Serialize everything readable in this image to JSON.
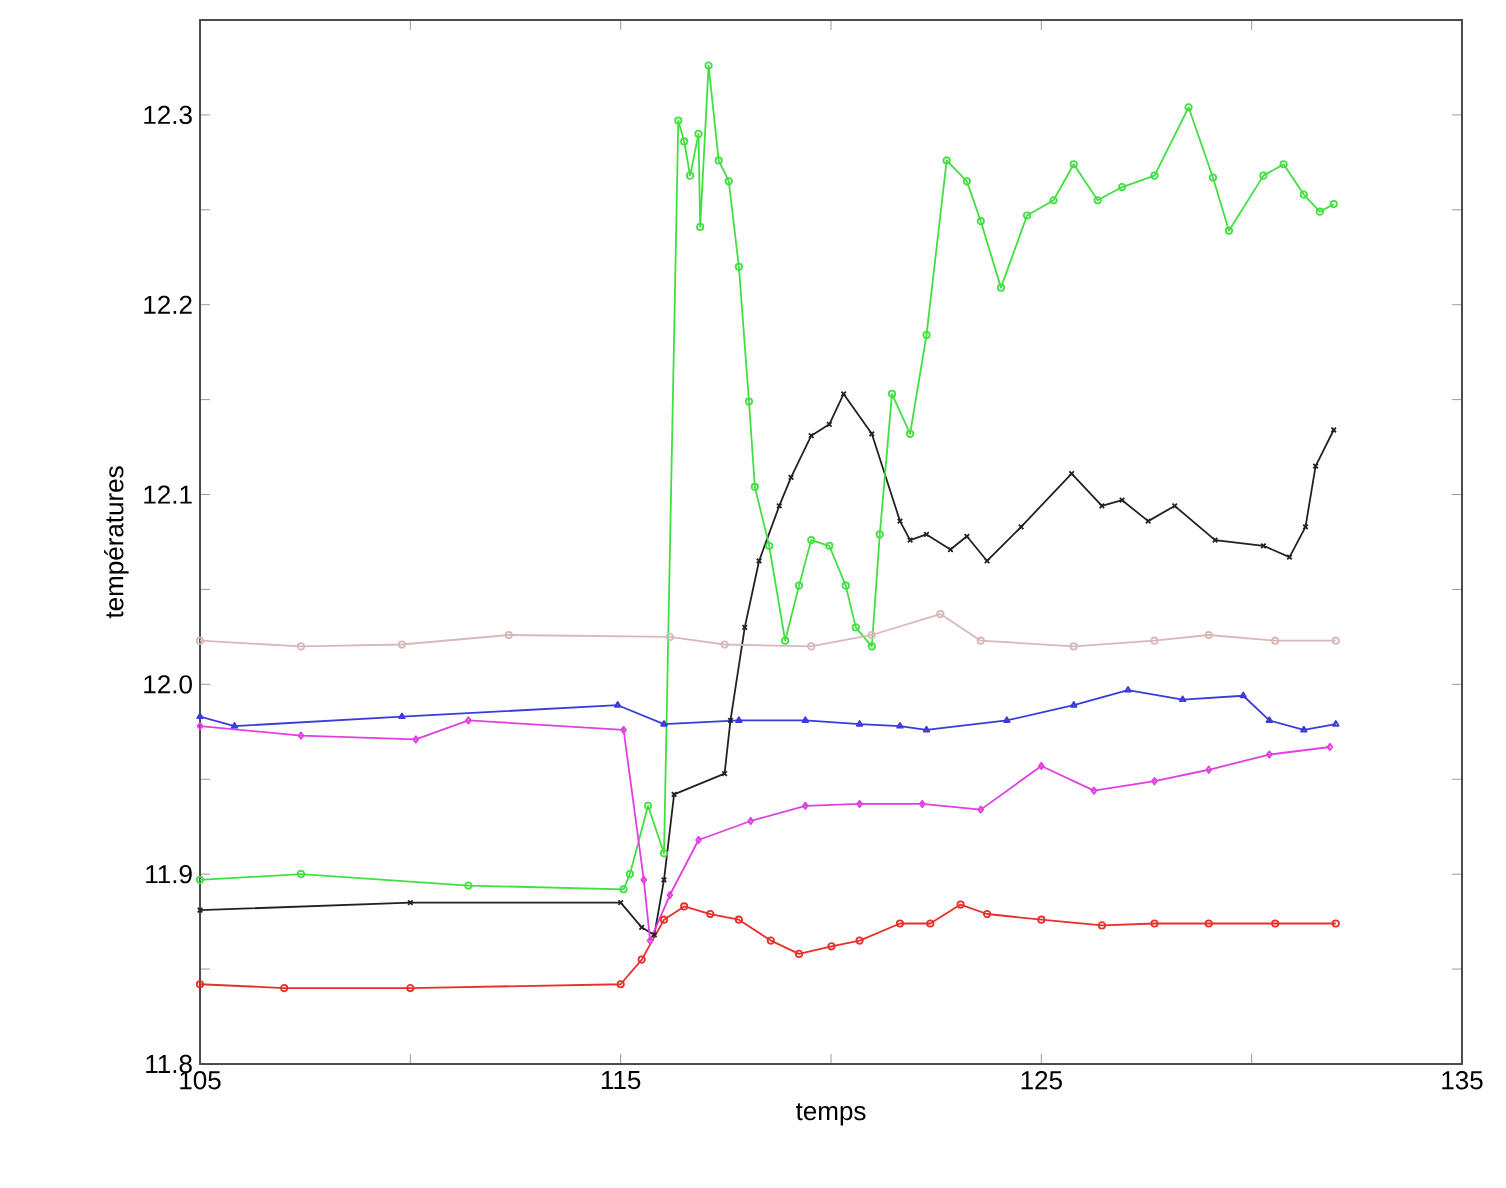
{
  "chart_data": {
    "type": "line",
    "xlabel": "temps",
    "ylabel": "températures",
    "xlim": [
      105,
      135
    ],
    "ylim": [
      11.8,
      12.35
    ],
    "xticks": [
      105,
      {
        "value": 110,
        "label": null
      },
      115,
      {
        "value": 120,
        "label": null
      },
      125,
      {
        "value": 130,
        "label": null
      },
      135
    ],
    "yticks": [
      11.8,
      {
        "value": 11.85,
        "label": null
      },
      11.9,
      {
        "value": 11.95,
        "label": null
      },
      {
        "value": 12.0,
        "label": "12.0"
      },
      {
        "value": 12.05,
        "label": null
      },
      12.1,
      {
        "value": 12.15,
        "label": null
      },
      12.2,
      {
        "value": 12.25,
        "label": null
      },
      12.3
    ],
    "line_style": "solid",
    "series": [
      {
        "color": "#222222",
        "marker": "cross",
        "x": [
          105,
          110,
          115,
          115.5,
          115.8,
          116.03,
          116.27,
          117.47,
          117.61,
          117.95,
          118.29,
          118.77,
          119.05,
          119.53,
          119.96,
          120.3,
          120.97,
          121.64,
          121.88,
          122.27,
          122.84,
          123.23,
          123.71,
          124.52,
          125.72,
          126.44,
          126.92,
          127.54,
          128.17,
          129.13,
          130.28,
          130.9,
          131.28,
          131.52,
          131.95
        ],
        "values": [
          11.881,
          11.885,
          11.885,
          11.872,
          11.868,
          11.897,
          11.942,
          11.953,
          11.981,
          12.03,
          12.065,
          12.094,
          12.109,
          12.131,
          12.137,
          12.153,
          12.132,
          12.086,
          12.076,
          12.079,
          12.071,
          12.078,
          12.065,
          12.083,
          12.111,
          12.094,
          12.097,
          12.086,
          12.094,
          12.076,
          12.073,
          12.067,
          12.083,
          12.115,
          12.134
        ]
      },
      {
        "color": "#e8302a",
        "marker": "circle",
        "x": [
          105,
          107,
          110,
          115,
          115.5,
          116.03,
          116.51,
          117.13,
          117.81,
          118.57,
          119.24,
          120.01,
          120.68,
          121.64,
          122.36,
          123.08,
          123.71,
          125.0,
          126.44,
          127.69,
          128.98,
          130.56,
          132.0
        ],
        "values": [
          11.842,
          11.84,
          11.84,
          11.842,
          11.855,
          11.876,
          11.883,
          11.879,
          11.876,
          11.865,
          11.858,
          11.862,
          11.865,
          11.874,
          11.874,
          11.884,
          11.879,
          11.876,
          11.873,
          11.874,
          11.874,
          11.874,
          11.874
        ]
      },
      {
        "color": "#40e040",
        "marker": "circle",
        "x": [
          105,
          107.4,
          111.38,
          115.07,
          115.22,
          115.65,
          116.03,
          116.37,
          116.51,
          116.65,
          116.85,
          116.89,
          117.09,
          117.33,
          117.57,
          117.81,
          118.05,
          118.19,
          118.53,
          118.91,
          119.24,
          119.53,
          119.96,
          120.35,
          120.59,
          120.97,
          121.16,
          121.45,
          121.88,
          122.27,
          122.75,
          123.23,
          123.56,
          124.04,
          124.66,
          125.29,
          125.77,
          126.34,
          126.92,
          127.69,
          128.5,
          129.08,
          129.46,
          130.28,
          130.76,
          131.24,
          131.62,
          131.95
        ],
        "values": [
          11.897,
          11.9,
          11.894,
          11.892,
          11.9,
          11.936,
          11.911,
          12.297,
          12.286,
          12.268,
          12.29,
          12.241,
          12.326,
          12.276,
          12.265,
          12.22,
          12.149,
          12.104,
          12.073,
          12.023,
          12.052,
          12.076,
          12.073,
          12.052,
          12.03,
          12.02,
          12.079,
          12.153,
          12.132,
          12.184,
          12.276,
          12.265,
          12.244,
          12.209,
          12.247,
          12.255,
          12.274,
          12.255,
          12.262,
          12.268,
          12.304,
          12.267,
          12.239,
          12.268,
          12.274,
          12.258,
          12.249,
          12.253
        ]
      },
      {
        "color": "#e040e0",
        "marker": "diamond",
        "x": [
          105,
          107.4,
          110.13,
          111.38,
          115.07,
          115.55,
          115.7,
          116.17,
          116.85,
          118.09,
          119.39,
          120.68,
          122.17,
          123.56,
          125.0,
          126.25,
          127.69,
          128.98,
          130.42,
          131.86
        ],
        "values": [
          11.978,
          11.973,
          11.971,
          11.981,
          11.976,
          11.897,
          11.865,
          11.889,
          11.918,
          11.928,
          11.936,
          11.937,
          11.937,
          11.934,
          11.957,
          11.944,
          11.949,
          11.955,
          11.963,
          11.967
        ]
      },
      {
        "color": "#3b3bdc",
        "marker": "triangle",
        "x": [
          105,
          105.82,
          109.8,
          114.93,
          116.03,
          117.81,
          119.39,
          120.68,
          121.64,
          122.27,
          124.18,
          125.77,
          127.06,
          128.36,
          129.8,
          130.42,
          131.24,
          132.0
        ],
        "values": [
          11.983,
          11.978,
          11.983,
          11.989,
          11.979,
          11.981,
          11.981,
          11.979,
          11.978,
          11.976,
          11.981,
          11.989,
          11.997,
          11.992,
          11.994,
          11.981,
          11.976,
          11.979
        ]
      },
      {
        "color": "#d8b8b8",
        "marker": "circle",
        "x": [
          105,
          107.4,
          109.8,
          112.34,
          116.17,
          117.47,
          119.53,
          120.97,
          122.6,
          123.56,
          125.77,
          127.69,
          128.98,
          130.56,
          132.0
        ],
        "values": [
          12.023,
          12.02,
          12.021,
          12.026,
          12.025,
          12.021,
          12.02,
          12.026,
          12.037,
          12.023,
          12.02,
          12.023,
          12.026,
          12.023,
          12.023
        ]
      }
    ]
  }
}
